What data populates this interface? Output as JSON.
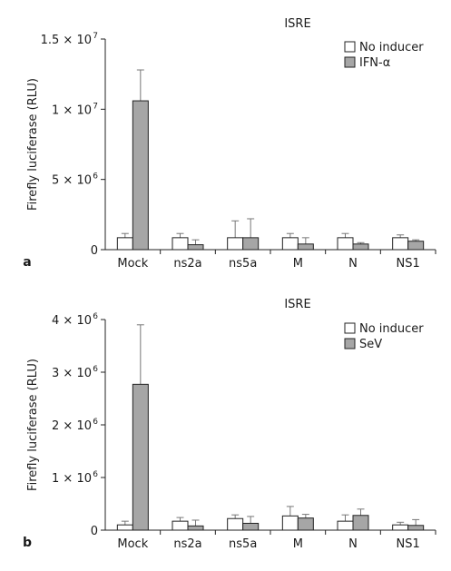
{
  "colors": {
    "no_inducer": "#ffffff",
    "inducer": "#a6a6a6",
    "stroke": "#222222",
    "error": "#777777"
  },
  "chart_data": [
    {
      "type": "bar",
      "panel_label": "a",
      "title": "ISRE",
      "ylabel": "Firefly luciferase (RLU)",
      "ylim": [
        0,
        15000000
      ],
      "yticks": [
        {
          "value": 0,
          "label": "0"
        },
        {
          "value": 5000000,
          "label": "5 × 10",
          "exp": "6"
        },
        {
          "value": 10000000,
          "label": "1 × 10",
          "exp": "7"
        },
        {
          "value": 15000000,
          "label": "1.5 × 10",
          "exp": "7"
        }
      ],
      "categories": [
        "Mock",
        "ns2a",
        "ns5a",
        "M",
        "N",
        "NS1"
      ],
      "series": [
        {
          "name": "No inducer",
          "color": "#ffffff",
          "values": [
            850000,
            850000,
            850000,
            850000,
            850000,
            850000
          ],
          "errors": [
            300000,
            300000,
            1200000,
            300000,
            300000,
            200000
          ]
        },
        {
          "name": "IFN-α",
          "color": "#a6a6a6",
          "values": [
            10600000,
            350000,
            850000,
            400000,
            400000,
            600000
          ],
          "errors": [
            2200000,
            350000,
            1350000,
            450000,
            100000,
            100000
          ]
        }
      ],
      "legend": "top-right",
      "grid": false
    },
    {
      "type": "bar",
      "panel_label": "b",
      "title": "ISRE",
      "ylabel": "Firefly luciferase (RLU)",
      "ylim": [
        0,
        4000000
      ],
      "yticks": [
        {
          "value": 0,
          "label": "0"
        },
        {
          "value": 1000000,
          "label": "1 × 10",
          "exp": "6"
        },
        {
          "value": 2000000,
          "label": "2 × 10",
          "exp": "6"
        },
        {
          "value": 3000000,
          "label": "3 × 10",
          "exp": "6"
        },
        {
          "value": 4000000,
          "label": "4 × 10",
          "exp": "6"
        }
      ],
      "categories": [
        "Mock",
        "ns2a",
        "ns5a",
        "M",
        "N",
        "NS1"
      ],
      "series": [
        {
          "name": "No inducer",
          "color": "#ffffff",
          "values": [
            100000,
            170000,
            220000,
            270000,
            170000,
            100000
          ],
          "errors": [
            70000,
            70000,
            70000,
            180000,
            120000,
            50000
          ]
        },
        {
          "name": "SeV",
          "color": "#a6a6a6",
          "values": [
            2770000,
            80000,
            130000,
            230000,
            280000,
            90000
          ],
          "errors": [
            1130000,
            110000,
            130000,
            70000,
            120000,
            110000
          ]
        }
      ],
      "legend": "top-right",
      "grid": false
    }
  ]
}
